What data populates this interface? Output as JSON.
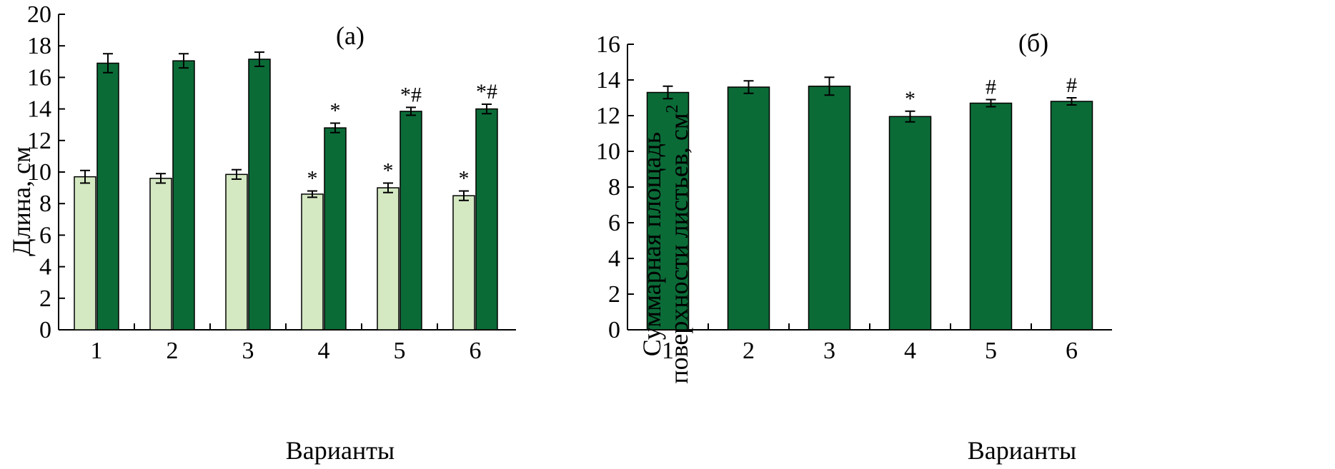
{
  "chart_data": [
    {
      "type": "bar",
      "panel_label": "(а)",
      "xlabel": "Варианты",
      "ylabel": "Длина, см",
      "categories": [
        "1",
        "2",
        "3",
        "4",
        "5",
        "6"
      ],
      "ylim": [
        0,
        20
      ],
      "yticks": [
        0,
        2,
        4,
        6,
        8,
        10,
        12,
        14,
        16,
        18,
        20
      ],
      "ytick_labels": [
        "0",
        "2",
        "4",
        "6",
        "8",
        "10",
        "12",
        "14",
        "16",
        "18",
        "20"
      ],
      "grid": false,
      "series": [
        {
          "color": "#d4e8c2",
          "values": [
            9.7,
            9.6,
            9.85,
            8.6,
            9.0,
            8.5
          ],
          "errors": [
            0.4,
            0.3,
            0.3,
            0.2,
            0.3,
            0.3
          ],
          "annotations": [
            "",
            "",
            "",
            "*",
            "*",
            "*"
          ]
        },
        {
          "color": "#0b6b37",
          "values": [
            16.9,
            17.05,
            17.15,
            12.8,
            13.85,
            14.0
          ],
          "errors": [
            0.6,
            0.45,
            0.45,
            0.3,
            0.25,
            0.3
          ],
          "annotations": [
            "",
            "",
            "",
            "*",
            "*#",
            "*#"
          ]
        }
      ]
    },
    {
      "type": "bar",
      "panel_label": "(б)",
      "xlabel": "Варианты",
      "ylabel_line1": "Суммарная площадь",
      "ylabel_line2": "поверхности листьев, см",
      "ylabel_sup": "2",
      "categories": [
        "1",
        "2",
        "3",
        "4",
        "5",
        "6"
      ],
      "ylim": [
        0,
        16
      ],
      "yticks": [
        0,
        2,
        4,
        6,
        8,
        10,
        12,
        14,
        16
      ],
      "ytick_labels": [
        "0",
        "2",
        "4",
        "6",
        "8",
        "10",
        "12",
        "14",
        "16"
      ],
      "grid": false,
      "series": [
        {
          "color": "#0b6b37",
          "values": [
            13.3,
            13.6,
            13.65,
            11.95,
            12.7,
            12.8
          ],
          "errors": [
            0.35,
            0.35,
            0.5,
            0.3,
            0.2,
            0.2
          ],
          "annotations": [
            "",
            "",
            "",
            "*",
            "#",
            "#"
          ]
        }
      ]
    }
  ]
}
